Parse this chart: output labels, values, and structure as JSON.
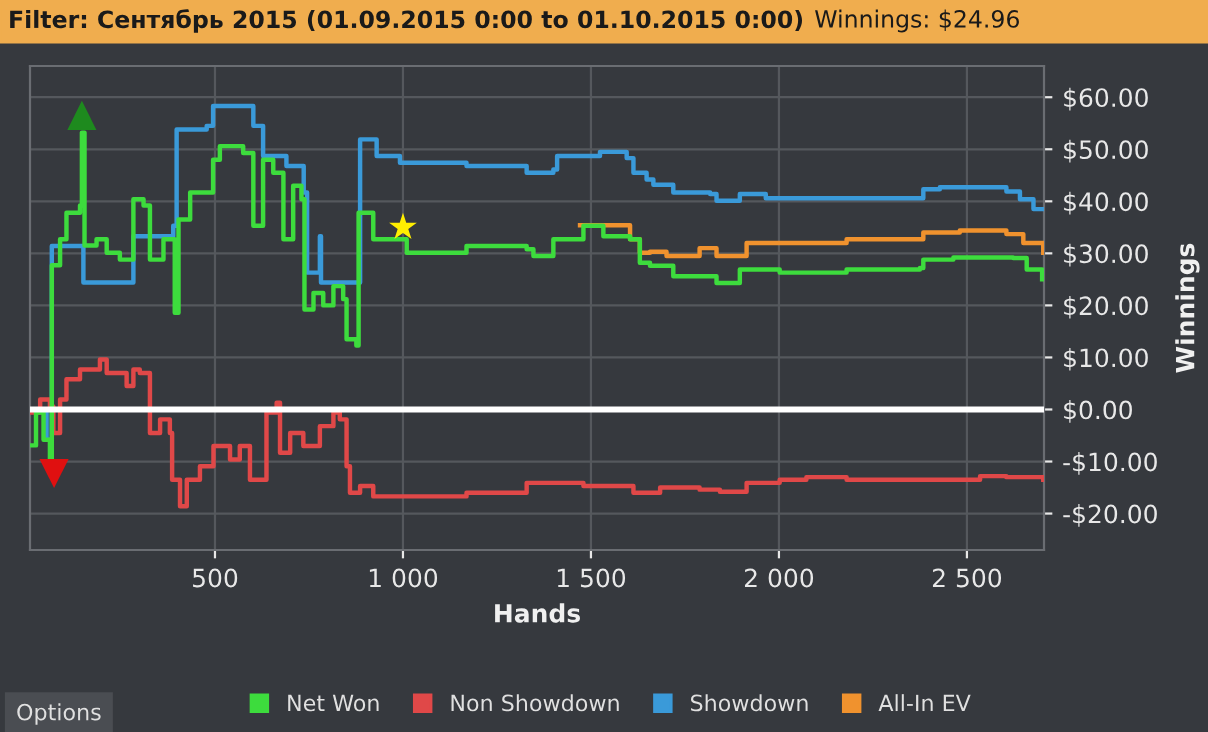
{
  "chart_data": {
    "type": "step",
    "title": "Filter: Сентябрь 2015 (01.09.2015 0:00 to 01.10.2015 0:00)",
    "subtitle": "Winnings: $24.96",
    "xlabel": "Hands",
    "ylabel": "Winnings",
    "annotations": [
      "Options"
    ],
    "xlim": [
      8,
      2705
    ],
    "ylim": [
      -27,
      66
    ],
    "xticks": [
      {
        "value": 500,
        "label": "500"
      },
      {
        "value": 1000,
        "label": "1 000"
      },
      {
        "value": 1500,
        "label": "1 500"
      },
      {
        "value": 2000,
        "label": "2 000"
      },
      {
        "value": 2500,
        "label": "2 500"
      }
    ],
    "yticks": [
      {
        "value": -20,
        "label": "-$20.00"
      },
      {
        "value": -10,
        "label": "-$10.00"
      },
      {
        "value": 0,
        "label": "$0.00"
      },
      {
        "value": 10,
        "label": "$10.00"
      },
      {
        "value": 20,
        "label": "$20.00"
      },
      {
        "value": 30,
        "label": "$30.00"
      },
      {
        "value": 40,
        "label": "$40.00"
      },
      {
        "value": 50,
        "label": "$50.00"
      },
      {
        "value": 60,
        "label": "$60.00"
      }
    ],
    "grid": true,
    "legend": "bottom",
    "ref_lines": [
      {
        "axis": "y",
        "value": 0,
        "color": "#ffffff"
      }
    ],
    "series": [
      {
        "name": "Net Won",
        "color": "#3ddc3d",
        "x": [
          13,
          24,
          44,
          61,
          66,
          88,
          105,
          141,
          146,
          153,
          185,
          212,
          247,
          283,
          310,
          327,
          363,
          393,
          403,
          434,
          469,
          495,
          513,
          575,
          602,
          628,
          655,
          682,
          708,
          730,
          738,
          762,
          788,
          815,
          841,
          850,
          876,
          882,
          921,
          1010,
          1169,
          1329,
          1347,
          1400,
          1480,
          1533,
          1604,
          1630,
          1657,
          1719,
          1807,
          1834,
          1896,
          2002,
          2180,
          2375,
          2384,
          2464,
          2623,
          2659,
          2700
        ],
        "values": [
          -6.9,
          -0.6,
          -5.8,
          -9.6,
          27.7,
          32.7,
          37.8,
          39.2,
          53.2,
          31.5,
          32.7,
          30.1,
          28.8,
          40.4,
          39.2,
          28.8,
          32.7,
          18.6,
          36.5,
          41.7,
          41.7,
          48,
          50.6,
          49.3,
          35.3,
          48,
          45.5,
          32.7,
          43,
          40.4,
          19.2,
          22.4,
          20,
          23.7,
          21.2,
          13.5,
          12.3,
          37.8,
          32.7,
          30.1,
          31.4,
          30.8,
          29.5,
          32.7,
          35.3,
          33.3,
          32.7,
          28.2,
          27.6,
          25.6,
          25.6,
          24.3,
          26.9,
          26.3,
          26.9,
          27.2,
          28.8,
          29.2,
          29.1,
          26.9,
          25
        ]
      },
      {
        "name": "Non Showdown",
        "color": "#e04848",
        "x": [
          13,
          35,
          61,
          70,
          88,
          105,
          141,
          194,
          212,
          247,
          265,
          283,
          300,
          327,
          354,
          380,
          386,
          407,
          425,
          460,
          496,
          540,
          566,
          593,
          637,
          664,
          673,
          700,
          735,
          779,
          815,
          832,
          850,
          859,
          886,
          921,
          1169,
          1329,
          1480,
          1541,
          1613,
          1684,
          1789,
          1843,
          1914,
          2002,
          2073,
          2180,
          2535,
          2605,
          2703
        ],
        "values": [
          -0.6,
          1.9,
          0.6,
          -4.5,
          1.9,
          5.8,
          7.7,
          9.6,
          7,
          7,
          4.5,
          7.7,
          7,
          -4.5,
          -1.9,
          -4.5,
          -13.5,
          -18.6,
          -13.5,
          -10.9,
          -7,
          -9.6,
          -7,
          -13.5,
          -0.6,
          1.3,
          -8.3,
          -4.5,
          -7,
          -3.2,
          -0.6,
          -1.9,
          -10.9,
          -16,
          -14.7,
          -16.7,
          -16,
          -14.1,
          -14.7,
          -14.7,
          -16,
          -15,
          -15.4,
          -15.8,
          -14.1,
          -13.5,
          -13,
          -13.5,
          -12.8,
          -13,
          -13.5
        ]
      },
      {
        "name": "Showdown",
        "color": "#3a9ad9",
        "x": [
          13,
          52,
          66,
          141,
          150,
          274,
          283,
          389,
          398,
          478,
          495,
          584,
          602,
          628,
          690,
          736,
          745,
          771,
          779,
          782,
          859,
          886,
          921,
          930,
          992,
          1081,
          1169,
          1329,
          1400,
          1410,
          1480,
          1524,
          1595,
          1613,
          1648,
          1666,
          1719,
          1817,
          1834,
          1896,
          1965,
          2375,
          2384,
          2428,
          2605,
          2641,
          2677,
          2703
        ],
        "values": [
          0,
          -5.8,
          31.4,
          31.4,
          24.4,
          24.4,
          33.3,
          35.3,
          53.8,
          54.5,
          58.3,
          58.3,
          54.5,
          48.7,
          46.8,
          41.7,
          26.3,
          26.3,
          33.3,
          24.4,
          24.4,
          51.9,
          51.9,
          48.7,
          47.4,
          47.4,
          46.8,
          45.5,
          46.1,
          48.7,
          48.7,
          49.5,
          48.3,
          45.5,
          44.2,
          43.2,
          41.7,
          41.4,
          40.1,
          41.4,
          40.6,
          40.6,
          42.3,
          42.7,
          41.9,
          40.4,
          38.5,
          38.5
        ]
      },
      {
        "name": "All-In EV",
        "color": "#f0922e",
        "x": [
          1471,
          1604,
          1630,
          1657,
          1701,
          1789,
          1834,
          1914,
          2002,
          2180,
          2375,
          2384,
          2481,
          2605,
          2650,
          2703
        ],
        "values": [
          35.4,
          32.7,
          30.1,
          30.3,
          29.5,
          31,
          29.5,
          32,
          32,
          32.7,
          32.7,
          34,
          34.4,
          33.7,
          32,
          30.1
        ]
      },
      {
        "type": "scatter",
        "color": "#1e8a1e",
        "marker": "triangle",
        "x": [
          146
        ],
        "values": [
          56.5
        ]
      },
      {
        "type": "scatter",
        "color": "#e01010",
        "marker": "triangle_down",
        "x": [
          72
        ],
        "values": [
          -12.3
        ]
      },
      {
        "type": "scatter",
        "color": "#ffee00",
        "marker": "star",
        "x": [
          1000
        ],
        "values": [
          35
        ]
      }
    ]
  }
}
